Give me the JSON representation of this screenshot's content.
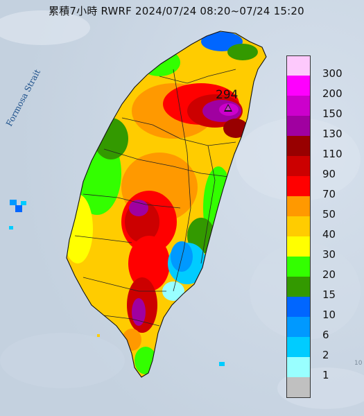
{
  "title": "累積7小時 RWRF 2024/07/24 08:20~07/24 15:20",
  "strait_label": "Formosa Strait",
  "max_value_label": "294",
  "legend": [
    {
      "label": "300",
      "color": "#fdc9fc"
    },
    {
      "label": "200",
      "color": "#fe00fe"
    },
    {
      "label": "150",
      "color": "#cc00cc"
    },
    {
      "label": "130",
      "color": "#a000a0"
    },
    {
      "label": "110",
      "color": "#980000"
    },
    {
      "label": "90",
      "color": "#cc0000"
    },
    {
      "label": "70",
      "color": "#ff0000"
    },
    {
      "label": "50",
      "color": "#ff9900"
    },
    {
      "label": "40",
      "color": "#ffcc00"
    },
    {
      "label": "30",
      "color": "#ffff00"
    },
    {
      "label": "20",
      "color": "#33ff00"
    },
    {
      "label": "15",
      "color": "#339900"
    },
    {
      "label": "10",
      "color": "#0066ff"
    },
    {
      "label": "6",
      "color": "#0099ff"
    },
    {
      "label": "2",
      "color": "#00ccff"
    },
    {
      "label": "1",
      "color": "#99ffff"
    },
    {
      "label": "",
      "color": "#c0c0c0"
    }
  ],
  "edge_fragment": "10"
}
